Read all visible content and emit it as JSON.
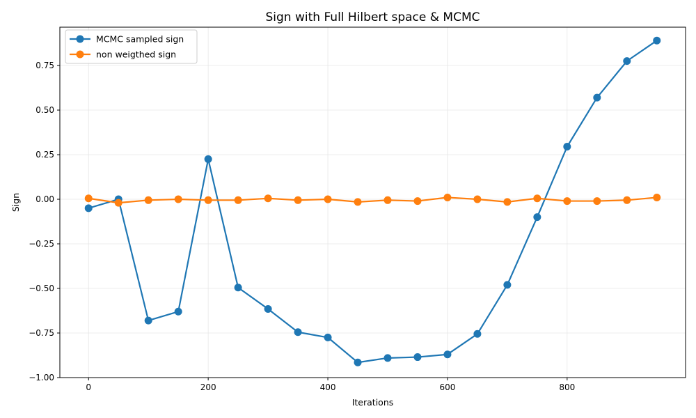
{
  "chart_data": {
    "type": "line",
    "title": "Sign with Full Hilbert space & MCMC",
    "xlabel": "Iterations",
    "ylabel": "Sign",
    "xlim": [
      -48,
      998
    ],
    "ylim": [
      -1.0,
      0.965
    ],
    "x_ticks": [
      0,
      200,
      400,
      600,
      800
    ],
    "x_tick_labels": [
      "0",
      "200",
      "400",
      "600",
      "800"
    ],
    "y_ticks": [
      -1.0,
      -0.75,
      -0.5,
      -0.25,
      0.0,
      0.25,
      0.5,
      0.75
    ],
    "y_tick_labels": [
      "−1.00",
      "−0.75",
      "−0.50",
      "−0.25",
      "0.00",
      "0.25",
      "0.50",
      "0.75"
    ],
    "grid": true,
    "legend_position": "top-left",
    "x": [
      0,
      50,
      100,
      150,
      200,
      250,
      300,
      350,
      400,
      450,
      500,
      550,
      600,
      650,
      700,
      750,
      800,
      850,
      900,
      950
    ],
    "series": [
      {
        "name": "MCMC sampled sign",
        "color": "#1f77b4",
        "values": [
          -0.05,
          0.0,
          -0.68,
          -0.63,
          0.225,
          -0.495,
          -0.615,
          -0.745,
          -0.775,
          -0.915,
          -0.89,
          -0.885,
          -0.87,
          -0.755,
          -0.48,
          -0.1,
          0.295,
          0.57,
          0.775,
          0.89
        ]
      },
      {
        "name": "non weigthed sign",
        "color": "#ff7f0e",
        "values": [
          0.005,
          -0.02,
          -0.005,
          0.0,
          -0.005,
          -0.005,
          0.005,
          -0.005,
          0.0,
          -0.015,
          -0.005,
          -0.01,
          0.01,
          0.0,
          -0.015,
          0.005,
          -0.01,
          -0.01,
          -0.005,
          0.01
        ]
      }
    ]
  }
}
